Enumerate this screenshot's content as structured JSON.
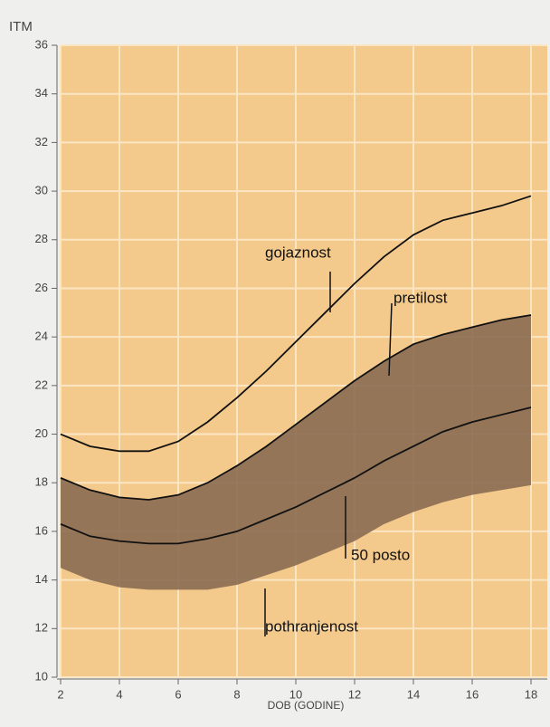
{
  "chart_data": {
    "type": "line",
    "ylabel": "ITM",
    "xlabel": "DOB (GODINE)",
    "x": [
      2,
      3,
      4,
      5,
      6,
      7,
      8,
      9,
      10,
      11,
      12,
      13,
      14,
      15,
      16,
      17,
      18
    ],
    "series": [
      {
        "name": "gojaznost",
        "color": "#111111",
        "values": [
          20.0,
          19.5,
          19.3,
          19.3,
          19.7,
          20.5,
          21.5,
          22.6,
          23.8,
          25.0,
          26.2,
          27.3,
          28.2,
          28.8,
          29.1,
          29.4,
          29.8
        ]
      },
      {
        "name": "pretilost",
        "color": "#111111",
        "values": [
          18.2,
          17.7,
          17.4,
          17.3,
          17.5,
          18.0,
          18.7,
          19.5,
          20.4,
          21.3,
          22.2,
          23.0,
          23.7,
          24.1,
          24.4,
          24.7,
          24.9
        ]
      },
      {
        "name": "50 posto",
        "color": "#111111",
        "values": [
          16.3,
          15.8,
          15.6,
          15.5,
          15.5,
          15.7,
          16.0,
          16.5,
          17.0,
          17.6,
          18.2,
          18.9,
          19.5,
          20.1,
          20.5,
          20.8,
          21.1
        ]
      },
      {
        "name": "pothranjenost",
        "color": "#8b6b52",
        "values": [
          14.5,
          14.0,
          13.7,
          13.6,
          13.6,
          13.6,
          13.8,
          14.2,
          14.6,
          15.1,
          15.6,
          16.3,
          16.8,
          17.2,
          17.5,
          17.7,
          17.9
        ]
      }
    ],
    "xlim": [
      2,
      18
    ],
    "ylim": [
      10,
      36
    ],
    "xticks": [
      2,
      4,
      6,
      8,
      10,
      12,
      14,
      16,
      18
    ],
    "yticks": [
      10,
      12,
      14,
      16,
      18,
      20,
      22,
      24,
      26,
      28,
      30,
      32,
      34,
      36
    ],
    "grid": true,
    "background": "#f4c98c"
  }
}
